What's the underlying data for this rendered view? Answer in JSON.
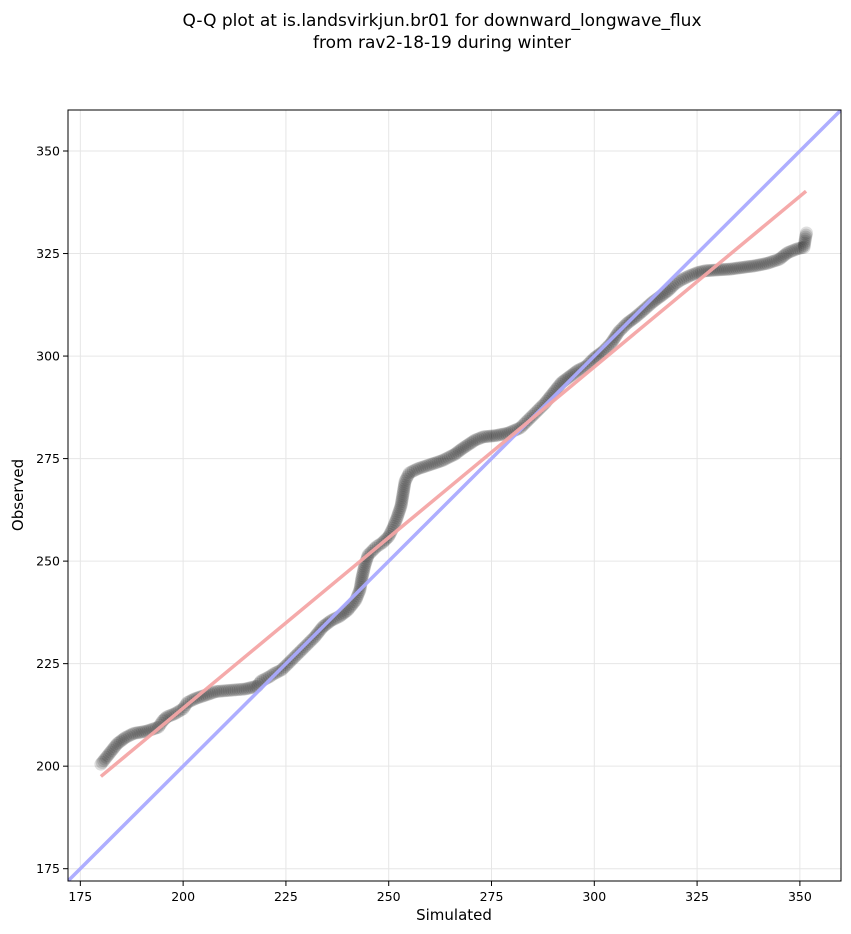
{
  "chart_data": {
    "type": "scatter",
    "title": [
      "Q-Q plot at is.landsvirkjun.br01 for downward_longwave_flux",
      "from rav2-18-19 during winter"
    ],
    "xlabel": "Simulated",
    "ylabel": "Observed",
    "xlim": [
      172,
      360
    ],
    "ylim": [
      172,
      360
    ],
    "xticks": [
      175,
      200,
      225,
      250,
      275,
      300,
      325,
      350
    ],
    "yticks": [
      175,
      200,
      225,
      250,
      275,
      300,
      325,
      350
    ],
    "grid": true,
    "one_to_one_line": {
      "x": [
        172,
        360
      ],
      "y": [
        172,
        360
      ],
      "color": "#aaaaff"
    },
    "fit_line": {
      "x": [
        180,
        351.5
      ],
      "y": [
        197.5,
        340.2
      ],
      "color": "#f4a5a5"
    },
    "point_color": "#000000",
    "quantile_path": [
      [
        180,
        200.5
      ],
      [
        182,
        203
      ],
      [
        184,
        205.5
      ],
      [
        186,
        207
      ],
      [
        188,
        208
      ],
      [
        191,
        208.5
      ],
      [
        194,
        209.5
      ],
      [
        195,
        211
      ],
      [
        196,
        212
      ],
      [
        198,
        212.8
      ],
      [
        200,
        214
      ],
      [
        201,
        215.5
      ],
      [
        203,
        216.5
      ],
      [
        206,
        217.5
      ],
      [
        208,
        218.2
      ],
      [
        215,
        218.8
      ],
      [
        218,
        219.5
      ],
      [
        219,
        220.8
      ],
      [
        221,
        221.8
      ],
      [
        222,
        222.5
      ],
      [
        224,
        223.5
      ],
      [
        226,
        225.5
      ],
      [
        228,
        227.5
      ],
      [
        230,
        229.5
      ],
      [
        232,
        231.5
      ],
      [
        234,
        234
      ],
      [
        236,
        235.5
      ],
      [
        238,
        236.5
      ],
      [
        240,
        238
      ],
      [
        242,
        240.5
      ],
      [
        243,
        243
      ],
      [
        243.5,
        246
      ],
      [
        244.2,
        249
      ],
      [
        245,
        251.5
      ],
      [
        247,
        253.5
      ],
      [
        248.5,
        254.5
      ],
      [
        250,
        256
      ],
      [
        251,
        258
      ],
      [
        252,
        260.5
      ],
      [
        253,
        263.5
      ],
      [
        253.5,
        266.5
      ],
      [
        254,
        269.5
      ],
      [
        255,
        271.5
      ],
      [
        257,
        272.5
      ],
      [
        260,
        273.5
      ],
      [
        263,
        274.5
      ],
      [
        266,
        276
      ],
      [
        268,
        277.5
      ],
      [
        271,
        279.5
      ],
      [
        273,
        280.3
      ],
      [
        276,
        280.6
      ],
      [
        279,
        281.2
      ],
      [
        282,
        282.5
      ],
      [
        284,
        284.5
      ],
      [
        286,
        286.5
      ],
      [
        288,
        288.5
      ],
      [
        290,
        291
      ],
      [
        292,
        293.5
      ],
      [
        294,
        295
      ],
      [
        296,
        296.5
      ],
      [
        298,
        297.5
      ],
      [
        300,
        299.5
      ],
      [
        302,
        301
      ],
      [
        304,
        303
      ],
      [
        306,
        306
      ],
      [
        308,
        308
      ],
      [
        310,
        309.5
      ],
      [
        312,
        311.2
      ],
      [
        314,
        313
      ],
      [
        316,
        314.5
      ],
      [
        318,
        316
      ],
      [
        319.5,
        317.5
      ],
      [
        321,
        318.5
      ],
      [
        323,
        319.5
      ],
      [
        325,
        320.3
      ],
      [
        327,
        320.8
      ],
      [
        330,
        321
      ],
      [
        333,
        321.2
      ],
      [
        336,
        321.6
      ],
      [
        339,
        322
      ],
      [
        342,
        322.6
      ],
      [
        345,
        323.6
      ],
      [
        347,
        325.2
      ],
      [
        349.5,
        326.2
      ],
      [
        351,
        326.5
      ],
      [
        351.4,
        329
      ],
      [
        351.6,
        330
      ]
    ]
  }
}
